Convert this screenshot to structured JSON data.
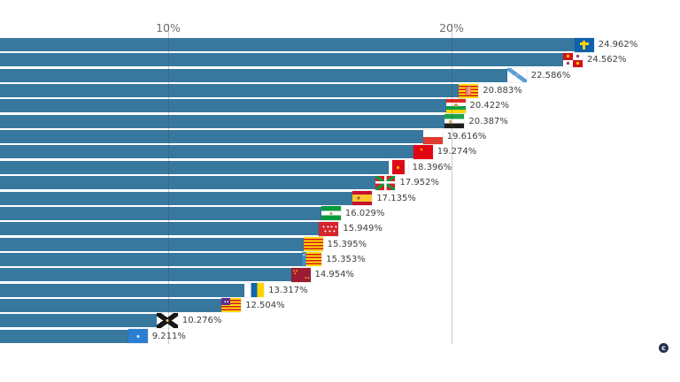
{
  "axis": {
    "ticks": [
      {
        "value": 10,
        "label": "10%"
      },
      {
        "value": 20,
        "label": "20%"
      }
    ]
  },
  "chart_data": {
    "type": "bar",
    "orientation": "horizontal",
    "unit": "percent",
    "title": "",
    "xlabel": "",
    "ylabel": "",
    "visible_x_range": [
      4.06,
      28.0
    ],
    "gridlines": "vertical at 10% and 20%",
    "legend": "none",
    "bar_color": "#38789f",
    "categories": [
      "asturias",
      "castilla-leon",
      "galicia",
      "aragon",
      "rioja",
      "extremadura",
      "cantabria",
      "castilla-la-mancha",
      "navarra",
      "pais-vasco",
      "espana",
      "andalucia",
      "madrid",
      "cataluna",
      "valenciana",
      "murcia",
      "canarias",
      "baleares",
      "ceuta",
      "melilla"
    ],
    "series": [
      {
        "flag": "asturias",
        "value": 24.962,
        "label": "24.962%"
      },
      {
        "flag": "castilla-leon",
        "value": 24.562,
        "label": "24.562%"
      },
      {
        "flag": "galicia",
        "value": 22.586,
        "label": "22.586%"
      },
      {
        "flag": "aragon",
        "value": 20.883,
        "label": "20.883%"
      },
      {
        "flag": "rioja",
        "value": 20.422,
        "label": "20.422%"
      },
      {
        "flag": "extremadura",
        "value": 20.387,
        "label": "20.387%"
      },
      {
        "flag": "cantabria",
        "value": 19.616,
        "label": "19.616%"
      },
      {
        "flag": "castilla-la-mancha",
        "value": 19.274,
        "label": "19.274%"
      },
      {
        "flag": "navarra",
        "value": 18.396,
        "label": "18.396%"
      },
      {
        "flag": "pais-vasco",
        "value": 17.952,
        "label": "17.952%"
      },
      {
        "flag": "espana",
        "value": 17.135,
        "label": "17.135%"
      },
      {
        "flag": "andalucia",
        "value": 16.029,
        "label": "16.029%"
      },
      {
        "flag": "madrid",
        "value": 15.949,
        "label": "15.949%"
      },
      {
        "flag": "cataluna",
        "value": 15.395,
        "label": "15.395%"
      },
      {
        "flag": "valenciana",
        "value": 15.353,
        "label": "15.353%"
      },
      {
        "flag": "murcia",
        "value": 14.954,
        "label": "14.954%"
      },
      {
        "flag": "canarias",
        "value": 13.317,
        "label": "13.317%"
      },
      {
        "flag": "baleares",
        "value": 12.504,
        "label": "12.504%"
      },
      {
        "flag": "ceuta",
        "value": 10.276,
        "label": "10.276%"
      },
      {
        "flag": "melilla",
        "value": 9.211,
        "label": "9.211%"
      }
    ]
  },
  "watermark": {
    "letter": "c",
    "suffix": "–"
  }
}
